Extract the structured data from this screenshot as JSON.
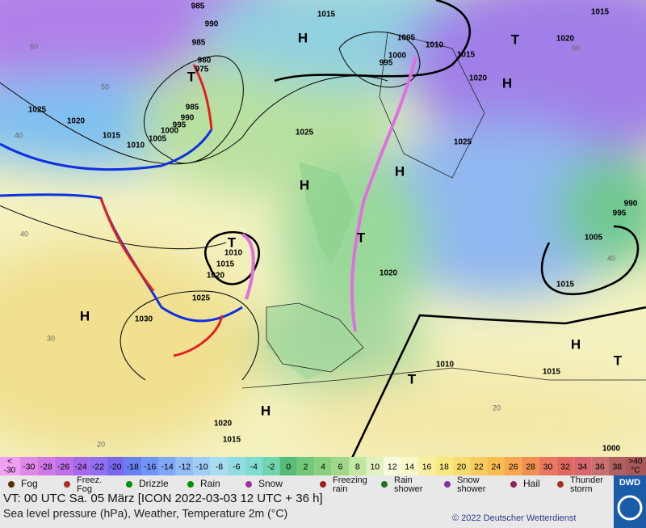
{
  "map": {
    "labels": [
      "985",
      "990",
      "985",
      "980",
      "975",
      "985",
      "990",
      "995",
      "1000",
      "1005",
      "1010",
      "1015",
      "1020",
      "1025",
      "1025",
      "1015",
      "1005",
      "1010",
      "1015",
      "1020",
      "1000",
      "995",
      "1015",
      "1020",
      "1025",
      "1010",
      "1015",
      "1020",
      "1025",
      "1030",
      "1020",
      "1015",
      "1005",
      "995",
      "990",
      "1010",
      "1015",
      "1000",
      "1020",
      "1015",
      "H",
      "H",
      "H",
      "H",
      "H",
      "H",
      "H",
      "T",
      "T",
      "T",
      "T",
      "T",
      "T",
      "60",
      "50",
      "40",
      "40",
      "30",
      "20",
      "60",
      "40",
      "20"
    ]
  },
  "scale": {
    "low_label": [
      "<",
      "-30"
    ],
    "high_label": [
      ">40",
      "°C"
    ],
    "low_color": "#f0a0f0",
    "high_color": "#a85858",
    "values": [
      -30,
      -28,
      -26,
      -24,
      -22,
      -20,
      -18,
      -16,
      -14,
      -12,
      -10,
      -8,
      -6,
      -4,
      -2,
      0,
      2,
      4,
      6,
      8,
      10,
      12,
      14,
      16,
      18,
      20,
      22,
      24,
      26,
      28,
      30,
      32,
      34,
      36,
      38
    ],
    "colors": [
      "#e088e8",
      "#d078e8",
      "#c070e8",
      "#a868ec",
      "#9070f0",
      "#7868f0",
      "#6880f0",
      "#7094f8",
      "#80a8f8",
      "#90bcf8",
      "#a0ccf8",
      "#a8dcf0",
      "#90dce0",
      "#80dcd0",
      "#70d4b0",
      "#58bc78",
      "#70c878",
      "#88d080",
      "#a0d888",
      "#c0e8a0",
      "#e0f0c0",
      "#fafae0",
      "#f8f8c8",
      "#f8f0a0",
      "#f8e880",
      "#f8dc70",
      "#f8cc60",
      "#f8bc50",
      "#f8a850",
      "#f09050",
      "#e87860",
      "#e06860",
      "#d86870",
      "#c87070",
      "#b06060"
    ]
  },
  "legend": [
    "Fog",
    "Freez.\nFog",
    "Drizzle",
    "Rain",
    "Snow",
    "Freezing\nrain",
    "Rain\nshower",
    "Snow\nshower",
    "Hail",
    "Thunder\nstorm"
  ],
  "footer": {
    "valid_time": "VT: 00 UTC Sa.  05 März [ICON 2022-03-03  12 UTC + 36 h]",
    "description": "Sea level pressure (hPa), Weather, Temperature 2m (°C)",
    "copyright": "© 2022 Deutscher Wetterdienst",
    "logo": "DWD"
  }
}
